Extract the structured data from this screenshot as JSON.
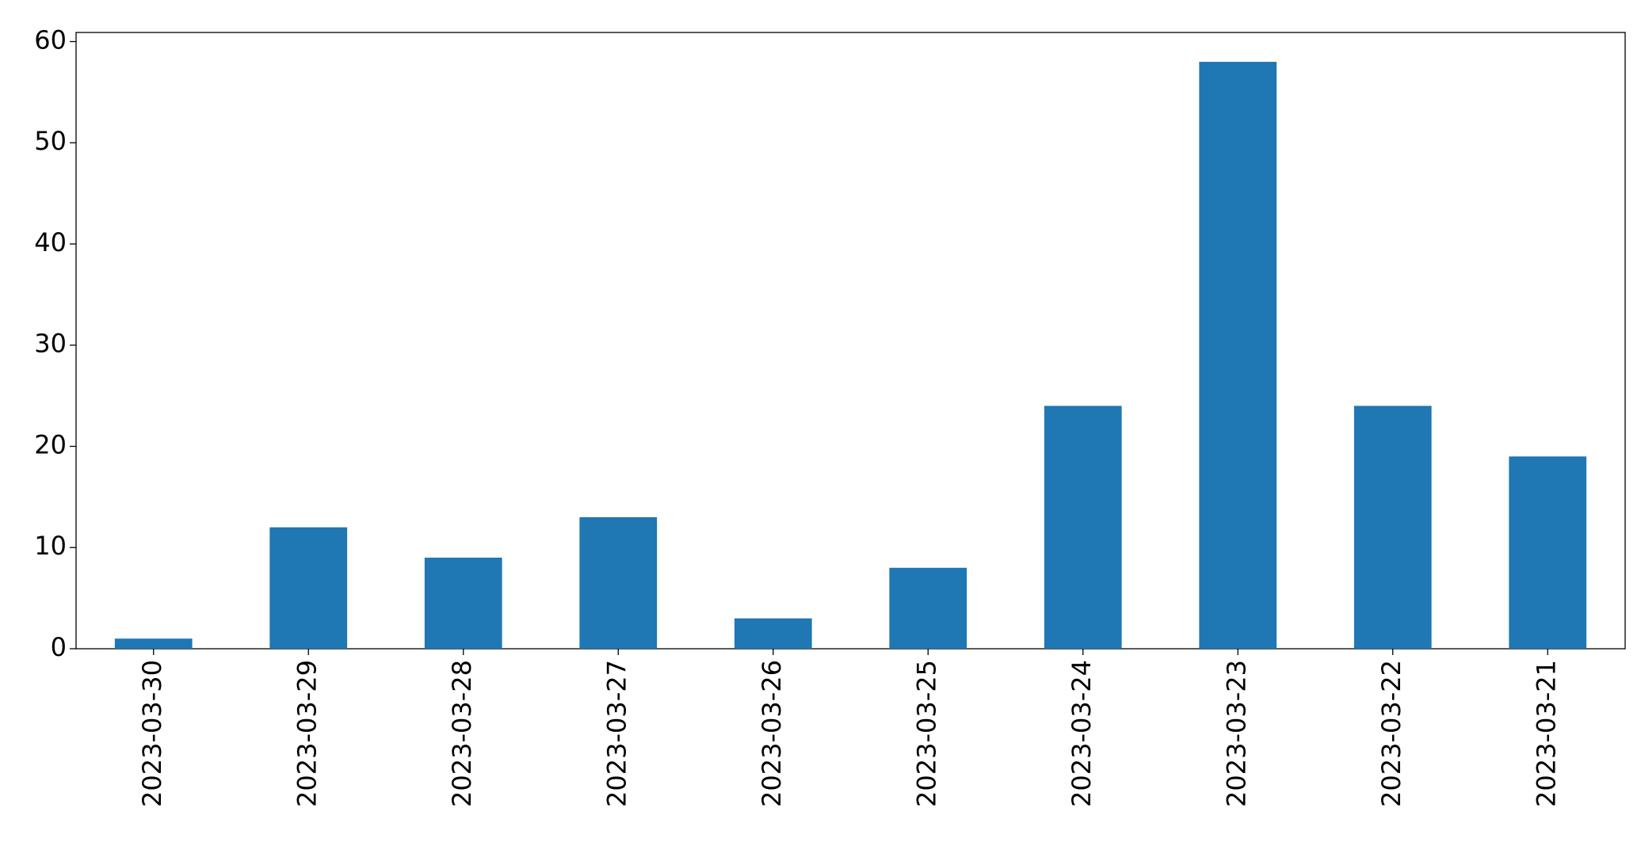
{
  "chart_data": {
    "type": "bar",
    "categories": [
      "2023-03-30",
      "2023-03-29",
      "2023-03-28",
      "2023-03-27",
      "2023-03-26",
      "2023-03-25",
      "2023-03-24",
      "2023-03-23",
      "2023-03-22",
      "2023-03-21"
    ],
    "values": [
      1,
      12,
      9,
      13,
      3,
      8,
      24,
      58,
      24,
      19
    ],
    "color": "#1f77b4",
    "ylim": [
      0,
      60.9
    ],
    "yticks": [
      0,
      10,
      20,
      30,
      40,
      50,
      60
    ],
    "grid": false
  }
}
